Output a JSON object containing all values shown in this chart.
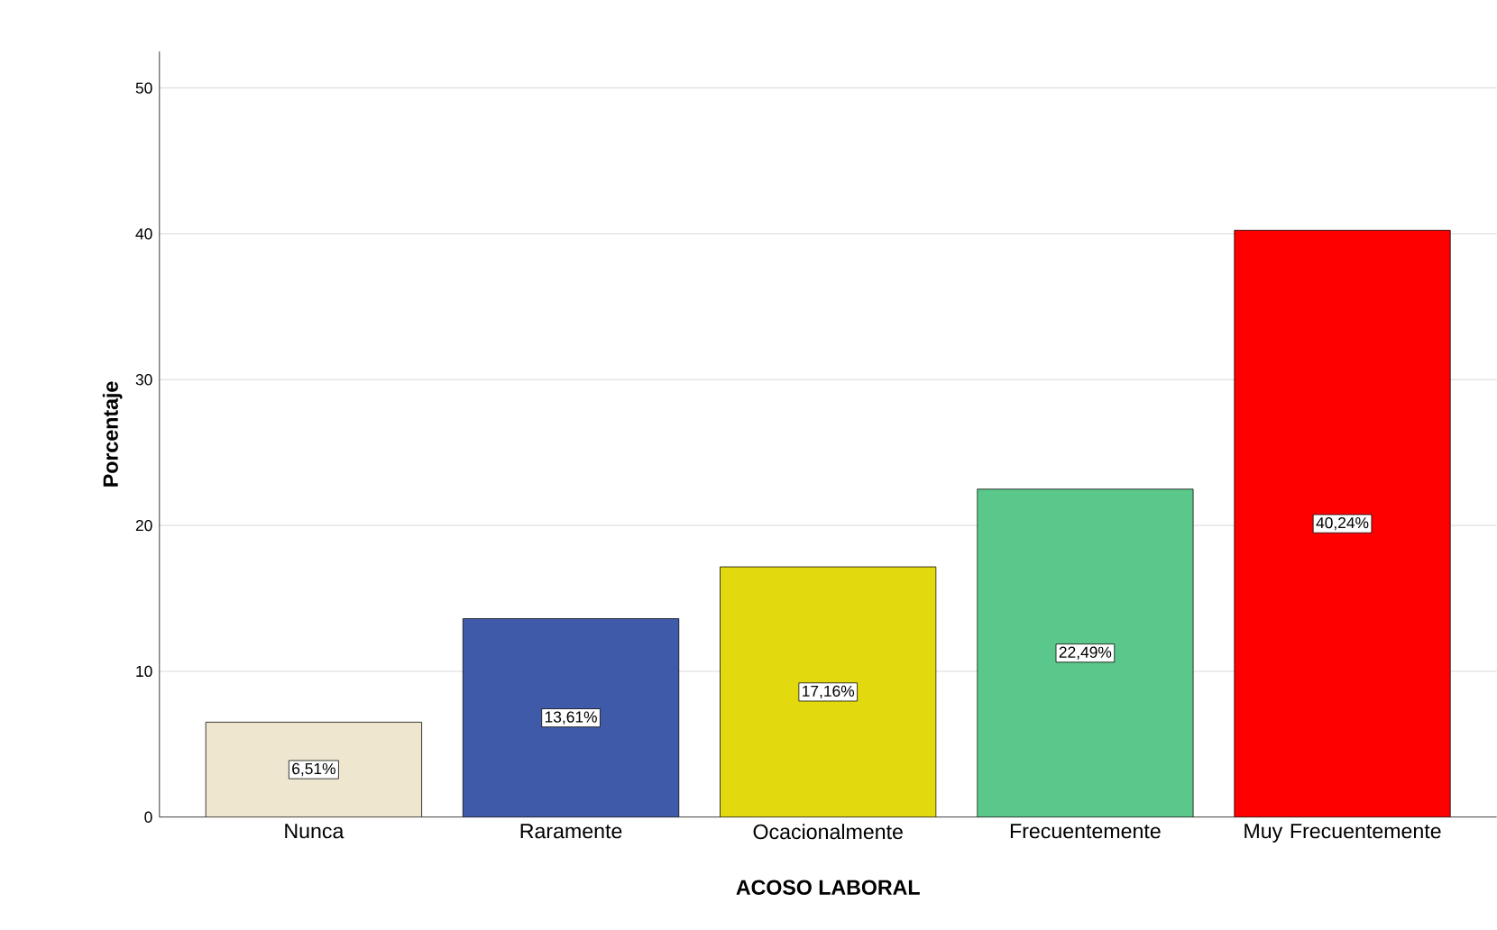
{
  "chart_data": {
    "type": "bar",
    "xlabel": "ACOSO LABORAL",
    "ylabel": "Porcentaje",
    "categories": [
      "Nunca",
      "Raramente",
      "Ocacionalmente",
      "Frecuentemente",
      "Muy Frecuentemente"
    ],
    "values": [
      6.51,
      13.61,
      17.16,
      22.49,
      40.24
    ],
    "colors": [
      "#efe6d0",
      "#3f5aa8",
      "#e3d90f",
      "#5ac88a",
      "#ff0000"
    ],
    "value_labels": [
      "6,51%",
      "13,61%",
      "17,16%",
      "22,49%",
      "40,24%"
    ],
    "ylim": [
      0,
      52.5
    ],
    "yticks": [
      0,
      10,
      20,
      30,
      40,
      50
    ],
    "grid": "y"
  }
}
